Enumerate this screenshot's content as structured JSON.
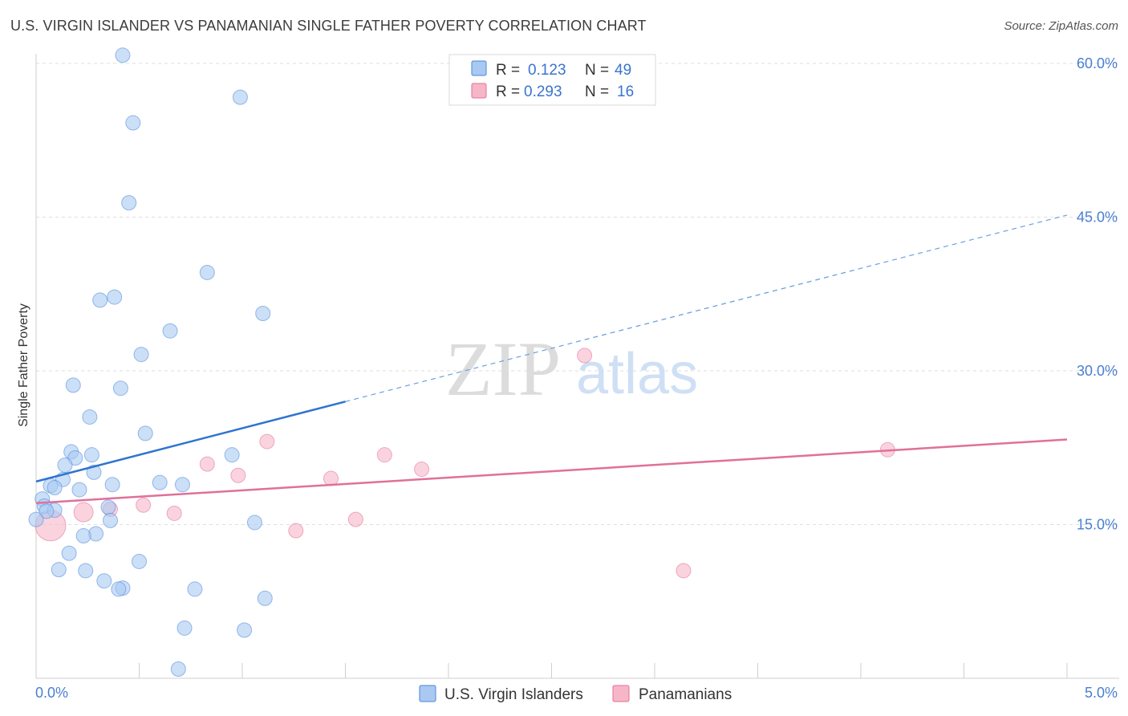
{
  "header": {
    "title": "U.S. VIRGIN ISLANDER VS PANAMANIAN SINGLE FATHER POVERTY CORRELATION CHART",
    "source": "Source: ZipAtlas.com"
  },
  "watermark": {
    "zip": "ZIP",
    "atlas": "atlas"
  },
  "legend": {
    "rows": [
      {
        "r_label": "R =",
        "r_value": "0.123",
        "n_label": "N =",
        "n_value": "49",
        "color": "#a9c9f2"
      },
      {
        "r_label": "R =",
        "r_value": "0.293",
        "n_label": "N =",
        "n_value": "16",
        "color": "#f7b6c8"
      }
    ]
  },
  "bottom_legend": [
    {
      "label": "U.S. Virgin Islanders",
      "color": "#a9c9f2"
    },
    {
      "label": "Panamanians",
      "color": "#f7b6c8"
    }
  ],
  "chart_data": {
    "type": "scatter",
    "title": "U.S. VIRGIN ISLANDER VS PANAMANIAN SINGLE FATHER POVERTY CORRELATION CHART",
    "xlabel": "",
    "ylabel": "Single Father Poverty",
    "xlim": [
      0.0,
      5.0
    ],
    "ylim": [
      0.0,
      60.0
    ],
    "x_tick_labels": [
      "0.0%",
      "5.0%"
    ],
    "y_tick_values": [
      15.0,
      30.0,
      45.0,
      60.0
    ],
    "y_tick_labels": [
      "15.0%",
      "30.0%",
      "45.0%",
      "60.0%"
    ],
    "grid": true,
    "series": [
      {
        "name": "U.S. Virgin Islanders",
        "color": "#4a86d8",
        "fill": "#a9c9f2",
        "points": [
          [
            0.42,
            60.8
          ],
          [
            0.99,
            56.7
          ],
          [
            0.47,
            54.2
          ],
          [
            0.45,
            46.4
          ],
          [
            0.83,
            39.6
          ],
          [
            0.38,
            37.2
          ],
          [
            0.31,
            36.9
          ],
          [
            1.1,
            35.6
          ],
          [
            0.65,
            33.9
          ],
          [
            0.51,
            31.6
          ],
          [
            0.18,
            28.6
          ],
          [
            0.41,
            28.3
          ],
          [
            0.26,
            25.5
          ],
          [
            0.53,
            23.9
          ],
          [
            0.17,
            22.1
          ],
          [
            0.27,
            21.8
          ],
          [
            0.19,
            21.5
          ],
          [
            0.95,
            21.8
          ],
          [
            0.14,
            20.8
          ],
          [
            0.28,
            20.1
          ],
          [
            0.13,
            19.4
          ],
          [
            0.07,
            18.8
          ],
          [
            0.09,
            18.6
          ],
          [
            0.37,
            18.9
          ],
          [
            0.6,
            19.1
          ],
          [
            0.71,
            18.9
          ],
          [
            0.21,
            18.4
          ],
          [
            0.03,
            17.5
          ],
          [
            0.04,
            16.8
          ],
          [
            0.35,
            16.7
          ],
          [
            0.09,
            16.4
          ],
          [
            0.05,
            16.3
          ],
          [
            0.36,
            15.4
          ],
          [
            1.06,
            15.2
          ],
          [
            0.0,
            15.5
          ],
          [
            0.29,
            14.1
          ],
          [
            0.23,
            13.9
          ],
          [
            0.16,
            12.2
          ],
          [
            0.5,
            11.4
          ],
          [
            0.11,
            10.6
          ],
          [
            0.24,
            10.5
          ],
          [
            0.33,
            9.5
          ],
          [
            0.42,
            8.8
          ],
          [
            0.4,
            8.7
          ],
          [
            0.77,
            8.7
          ],
          [
            1.11,
            7.8
          ],
          [
            0.72,
            4.9
          ],
          [
            1.01,
            4.7
          ],
          [
            0.69,
            0.9
          ]
        ],
        "trend": {
          "x0": 0.0,
          "y0": 19.2,
          "x1": 1.5,
          "y1": 27.0,
          "dashed_to_x": 5.0,
          "dashed_to_y": 45.2
        }
      },
      {
        "name": "Panamanians",
        "color": "#e0709a",
        "fill": "#f7b6c8",
        "points": [
          [
            2.66,
            31.5
          ],
          [
            1.12,
            23.1
          ],
          [
            4.13,
            22.3
          ],
          [
            1.69,
            21.8
          ],
          [
            0.83,
            20.9
          ],
          [
            1.87,
            20.4
          ],
          [
            0.98,
            19.8
          ],
          [
            1.43,
            19.5
          ],
          [
            0.52,
            16.9
          ],
          [
            0.36,
            16.5
          ],
          [
            0.23,
            16.2
          ],
          [
            0.67,
            16.1
          ],
          [
            1.55,
            15.5
          ],
          [
            1.26,
            14.4
          ],
          [
            3.14,
            10.5
          ],
          [
            0.07,
            14.9
          ]
        ],
        "trend": {
          "x0": 0.0,
          "y0": 17.1,
          "x1": 5.0,
          "y1": 23.3
        }
      }
    ]
  }
}
